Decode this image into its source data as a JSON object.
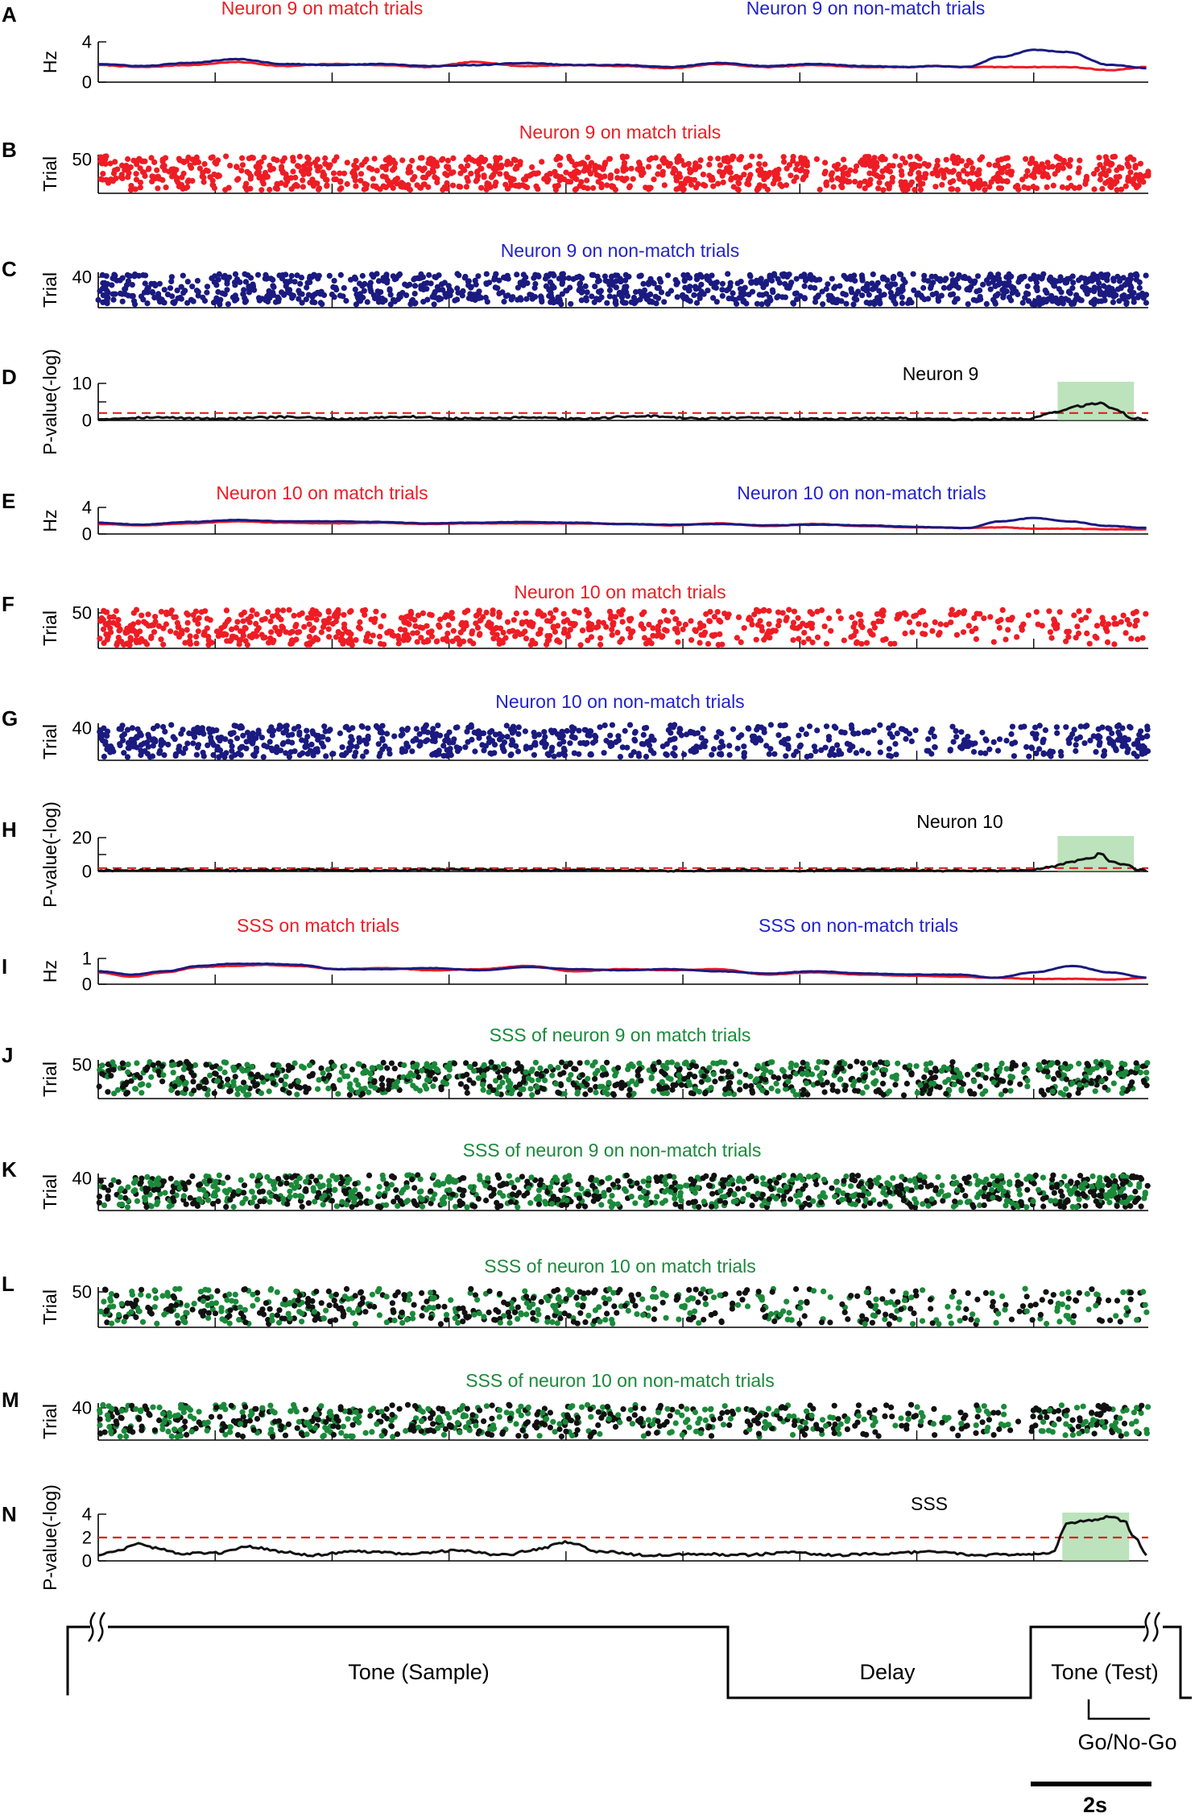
{
  "colors": {
    "match": "#ee1c24",
    "nonmatch": "#1a1a80",
    "nonmatch_text": "#2222cc",
    "sss": "#1a8a3a",
    "black": "#111111",
    "threshold": "#e02020",
    "highlight": "#90d090"
  },
  "chart_data": [
    {
      "id": "A",
      "type": "line",
      "panel_label": "A",
      "ylabel": "Hz",
      "yticks": [
        "4",
        "0"
      ],
      "ylim": [
        0,
        4
      ],
      "titles": [
        {
          "text": "Neuron 9 on match trials",
          "color": "match"
        },
        {
          "text": "Neuron 9 on non-match trials",
          "color": "nonmatch_text"
        }
      ],
      "x": [
        0,
        0.9,
        1.9,
        2.9,
        3.9,
        4.9,
        5.9,
        6.9,
        7.9,
        8.9,
        10,
        11,
        12,
        13,
        14,
        15,
        16,
        17,
        17.5,
        18.2,
        18.9,
        19.6,
        20.3,
        21.2,
        22
      ],
      "series": [
        {
          "color": "match",
          "values": [
            1.7,
            1.5,
            1.7,
            2.0,
            1.6,
            1.8,
            1.7,
            1.5,
            2.0,
            1.6,
            1.7,
            1.6,
            1.4,
            1.8,
            1.5,
            1.7,
            1.5,
            1.5,
            1.6,
            1.5,
            1.5,
            1.5,
            1.5,
            1.2,
            1.5
          ]
        },
        {
          "color": "nonmatch",
          "values": [
            1.8,
            1.6,
            1.9,
            2.3,
            1.8,
            1.7,
            1.8,
            1.6,
            1.7,
            1.9,
            1.7,
            1.7,
            1.5,
            1.9,
            1.6,
            1.8,
            1.6,
            1.5,
            1.6,
            1.5,
            2.5,
            3.2,
            3.0,
            1.7,
            1.4
          ]
        }
      ]
    },
    {
      "id": "B",
      "type": "scatter",
      "panel_label": "B",
      "ylabel": "Trial",
      "yticks": [
        "50"
      ],
      "trials": 50,
      "titles": [
        {
          "text": "Neuron 9 on match trials",
          "color": "match"
        }
      ],
      "raster": {
        "color": "match",
        "rates": [
          55,
          55,
          55,
          55,
          55,
          55,
          55,
          55,
          55
        ],
        "seed": 11
      }
    },
    {
      "id": "C",
      "type": "scatter",
      "panel_label": "C",
      "ylabel": "Trial",
      "yticks": [
        "40"
      ],
      "trials": 40,
      "titles": [
        {
          "text": "Neuron 9 on non-match trials",
          "color": "nonmatch_text"
        }
      ],
      "raster": {
        "color": "nonmatch",
        "rates": [
          50,
          55,
          55,
          55,
          55,
          55,
          55,
          55,
          80
        ],
        "seed": 23
      }
    },
    {
      "id": "D",
      "type": "line",
      "panel_label": "D",
      "ylabel": "P-value(-log)",
      "yticks": [
        "10",
        "5",
        "0"
      ],
      "ylim": [
        0,
        10
      ],
      "threshold": 2,
      "annotation": "Neuron 9",
      "highlight": [
        20.1,
        21.7
      ],
      "x": [
        0,
        1,
        2.5,
        4,
        5,
        6.5,
        7.5,
        9,
        10,
        11.5,
        12.5,
        13.5,
        15,
        16.5,
        18,
        19.5,
        20,
        20.5,
        21,
        21.3,
        21.7,
        22
      ],
      "series": [
        {
          "color": "black",
          "values": [
            0.4,
            0.8,
            0.5,
            0.9,
            0.4,
            1.0,
            0.5,
            0.7,
            0.4,
            1.2,
            0.5,
            0.7,
            0.4,
            0.6,
            0.3,
            0.4,
            2.2,
            3.8,
            4.6,
            3.0,
            0.6,
            0.3
          ]
        }
      ]
    },
    {
      "id": "E",
      "type": "line",
      "panel_label": "E",
      "ylabel": "Hz",
      "yticks": [
        "4",
        "0"
      ],
      "ylim": [
        0,
        4
      ],
      "titles": [
        {
          "text": "Neuron 10 on match trials",
          "color": "match"
        },
        {
          "text": "Neuron 10 on non-match trials",
          "color": "nonmatch_text"
        }
      ],
      "x": [
        0,
        0.9,
        1.9,
        2.9,
        3.9,
        4.9,
        5.9,
        6.9,
        7.9,
        8.9,
        10,
        11,
        12,
        13,
        14,
        15,
        16,
        17,
        17.5,
        18.2,
        18.9,
        19.6,
        20.3,
        21.2,
        22
      ],
      "series": [
        {
          "color": "match",
          "values": [
            1.5,
            1.3,
            1.6,
            1.9,
            1.7,
            1.6,
            1.7,
            1.5,
            1.6,
            1.6,
            1.6,
            1.5,
            1.3,
            1.6,
            1.2,
            1.5,
            1.2,
            1.0,
            1.0,
            0.9,
            1.0,
            0.8,
            0.8,
            0.7,
            0.7
          ]
        },
        {
          "color": "nonmatch",
          "values": [
            1.7,
            1.4,
            1.8,
            2.1,
            1.9,
            1.9,
            1.8,
            1.6,
            1.7,
            1.8,
            1.7,
            1.5,
            1.4,
            1.5,
            1.3,
            1.4,
            1.3,
            1.1,
            1.0,
            0.9,
            1.9,
            2.4,
            1.9,
            1.2,
            0.9
          ]
        }
      ]
    },
    {
      "id": "F",
      "type": "scatter",
      "panel_label": "F",
      "ylabel": "Trial",
      "yticks": [
        "50"
      ],
      "trials": 50,
      "titles": [
        {
          "text": "Neuron 10 on match trials",
          "color": "match"
        }
      ],
      "raster": {
        "color": "match",
        "rates": [
          55,
          55,
          50,
          50,
          40,
          35,
          30,
          22,
          25
        ],
        "seed": 37
      }
    },
    {
      "id": "G",
      "type": "scatter",
      "panel_label": "G",
      "ylabel": "Trial",
      "yticks": [
        "40"
      ],
      "trials": 40,
      "titles": [
        {
          "text": "Neuron 10 on non-match trials",
          "color": "nonmatch_text"
        }
      ],
      "raster": {
        "color": "nonmatch",
        "rates": [
          55,
          55,
          45,
          45,
          40,
          35,
          30,
          22,
          45
        ],
        "seed": 41
      }
    },
    {
      "id": "H",
      "type": "line",
      "panel_label": "H",
      "ylabel": "P-value(-log)",
      "yticks": [
        "20",
        "10",
        "0"
      ],
      "ylim": [
        0,
        20
      ],
      "threshold": 2,
      "annotation": "Neuron 10",
      "highlight": [
        20.1,
        21.7
      ],
      "x": [
        0,
        1.5,
        3,
        4.5,
        6,
        7.5,
        9,
        10.5,
        12,
        13.5,
        15,
        16.5,
        18,
        19.5,
        20,
        20.4,
        20.8,
        21.0,
        21.2,
        21.5,
        21.8,
        22
      ],
      "series": [
        {
          "color": "black",
          "values": [
            0.5,
            1.0,
            0.6,
            1.0,
            0.5,
            1.2,
            0.6,
            0.9,
            0.4,
            0.8,
            0.5,
            0.9,
            0.4,
            0.5,
            3.0,
            6.0,
            7.5,
            11.0,
            6.0,
            4.0,
            1.0,
            0.5
          ]
        }
      ]
    },
    {
      "id": "I",
      "type": "line",
      "panel_label": "I",
      "ylabel": "Hz",
      "yticks": [
        "1",
        "0"
      ],
      "ylim": [
        0,
        1.2
      ],
      "titles": [
        {
          "text": "SSS on match trials",
          "color": "match"
        },
        {
          "text": "SSS on non-match trials",
          "color": "nonmatch_text"
        }
      ],
      "x": [
        0,
        0.7,
        1.4,
        2.1,
        2.8,
        3.5,
        4.2,
        5,
        6,
        7,
        8,
        9,
        10,
        11,
        12,
        13,
        14,
        15,
        16,
        17,
        18,
        18.8,
        19.6,
        20.4,
        21.2,
        22
      ],
      "series": [
        {
          "color": "match",
          "values": [
            0.55,
            0.35,
            0.55,
            0.8,
            0.85,
            0.9,
            0.85,
            0.7,
            0.75,
            0.65,
            0.7,
            0.85,
            0.6,
            0.7,
            0.65,
            0.7,
            0.45,
            0.55,
            0.45,
            0.4,
            0.35,
            0.3,
            0.25,
            0.25,
            0.22,
            0.3
          ]
        },
        {
          "color": "nonmatch",
          "values": [
            0.6,
            0.45,
            0.6,
            0.85,
            0.95,
            0.95,
            0.9,
            0.7,
            0.7,
            0.75,
            0.65,
            0.8,
            0.7,
            0.65,
            0.7,
            0.6,
            0.5,
            0.6,
            0.5,
            0.45,
            0.45,
            0.3,
            0.55,
            0.85,
            0.55,
            0.3
          ]
        }
      ]
    },
    {
      "id": "J",
      "type": "scatter",
      "panel_label": "J",
      "ylabel": "Trial",
      "yticks": [
        "50"
      ],
      "trials": 50,
      "titles": [
        {
          "text": "SSS of neuron 9 on match trials",
          "color": "sss"
        }
      ],
      "raster": {
        "color": "black",
        "alt_color": "sss",
        "rates": [
          55,
          55,
          55,
          55,
          55,
          55,
          50,
          50,
          55
        ],
        "seed": 53
      }
    },
    {
      "id": "K",
      "type": "scatter",
      "panel_label": "K",
      "ylabel": "Trial",
      "yticks": [
        "40"
      ],
      "trials": 40,
      "titles": [
        {
          "text": "SSS of neuron 9 on non-match trials",
          "color": "sss"
        }
      ],
      "raster": {
        "color": "black",
        "alt_color": "sss",
        "rates": [
          55,
          55,
          55,
          55,
          55,
          55,
          55,
          55,
          75
        ],
        "seed": 61
      }
    },
    {
      "id": "L",
      "type": "scatter",
      "panel_label": "L",
      "ylabel": "Trial",
      "yticks": [
        "50"
      ],
      "trials": 50,
      "titles": [
        {
          "text": "SSS of neuron 10 on match trials",
          "color": "sss"
        }
      ],
      "raster": {
        "color": "black",
        "alt_color": "sss",
        "rates": [
          45,
          45,
          40,
          40,
          35,
          30,
          28,
          20,
          25
        ],
        "seed": 71
      }
    },
    {
      "id": "M",
      "type": "scatter",
      "panel_label": "M",
      "ylabel": "Trial",
      "yticks": [
        "40"
      ],
      "trials": 40,
      "titles": [
        {
          "text": "SSS of neuron 10 on non-match trials",
          "color": "sss"
        }
      ],
      "raster": {
        "color": "black",
        "alt_color": "sss",
        "rates": [
          50,
          50,
          45,
          45,
          40,
          35,
          30,
          22,
          45
        ],
        "seed": 83
      }
    },
    {
      "id": "N",
      "type": "line",
      "panel_label": "N",
      "ylabel": "P-value(-log)",
      "yticks": [
        "4",
        "2",
        "0"
      ],
      "ylim": [
        0,
        4
      ],
      "threshold": 2,
      "annotation": "SSS",
      "highlight": [
        20.2,
        21.6
      ],
      "x": [
        0,
        0.5,
        0.8,
        1.2,
        1.8,
        2.5,
        3.2,
        3.8,
        4.5,
        5.5,
        6.5,
        7.5,
        8.5,
        9.2,
        9.8,
        10.5,
        11.5,
        12.5,
        13.5,
        14.5,
        15.5,
        16.5,
        17.5,
        18.5,
        19.5,
        20,
        20.3,
        20.8,
        21.2,
        21.5,
        21.7,
        22
      ],
      "series": [
        {
          "color": "black",
          "values": [
            0.5,
            1.0,
            1.5,
            1.1,
            0.6,
            0.7,
            1.2,
            0.8,
            0.5,
            0.8,
            0.6,
            0.9,
            0.5,
            1.0,
            1.6,
            0.8,
            0.5,
            0.6,
            0.5,
            0.7,
            0.5,
            0.6,
            0.8,
            0.5,
            0.6,
            0.7,
            3.2,
            3.5,
            3.8,
            3.4,
            2.0,
            0.5
          ]
        }
      ]
    }
  ],
  "timeline": {
    "labels": [
      "Tone (Sample)",
      "Delay",
      "Tone (Test)",
      "Go/No-Go"
    ],
    "scale_label": "2s"
  }
}
